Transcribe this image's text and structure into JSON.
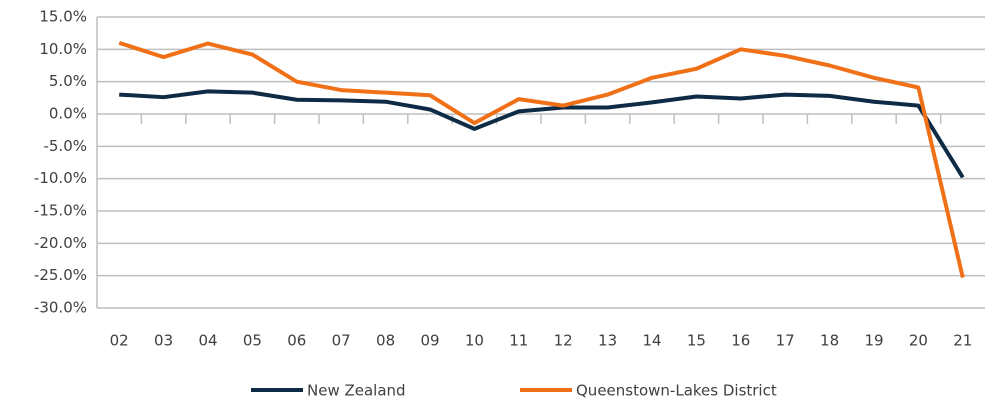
{
  "chart_data": {
    "type": "line",
    "categories": [
      "02",
      "03",
      "04",
      "05",
      "06",
      "07",
      "08",
      "09",
      "10",
      "11",
      "12",
      "13",
      "14",
      "15",
      "16",
      "17",
      "18",
      "19",
      "20",
      "21"
    ],
    "series": [
      {
        "name": "New Zealand",
        "color": "#0d2b45",
        "values": [
          3.0,
          2.6,
          3.5,
          3.3,
          2.2,
          2.1,
          1.9,
          0.7,
          -2.3,
          0.4,
          1.0,
          1.0,
          1.8,
          2.7,
          2.4,
          3.0,
          2.8,
          1.9,
          1.3,
          -9.8
        ]
      },
      {
        "name": "Queenstown-Lakes District",
        "color": "#f07017",
        "values": [
          11.0,
          8.8,
          10.9,
          9.2,
          5.0,
          3.7,
          3.3,
          2.9,
          -1.4,
          2.3,
          1.3,
          3.0,
          5.6,
          7.0,
          10.0,
          9.0,
          7.5,
          5.6,
          4.1,
          -25.3
        ]
      }
    ],
    "ylim": [
      -30,
      15
    ],
    "yticks": [
      {
        "value": -30,
        "label": "-30.0%"
      },
      {
        "value": -25,
        "label": "-25.0%"
      },
      {
        "value": -20,
        "label": "-20.0%"
      },
      {
        "value": -15,
        "label": "-15.0%"
      },
      {
        "value": -10,
        "label": "-10.0%"
      },
      {
        "value": -5,
        "label": "-5.0%"
      },
      {
        "value": 0,
        "label": "0.0%"
      },
      {
        "value": 5,
        "label": "5.0%"
      },
      {
        "value": 10,
        "label": "10.0%"
      },
      {
        "value": 15,
        "label": "15.0%"
      }
    ],
    "grid": true,
    "legend": "bottom"
  }
}
